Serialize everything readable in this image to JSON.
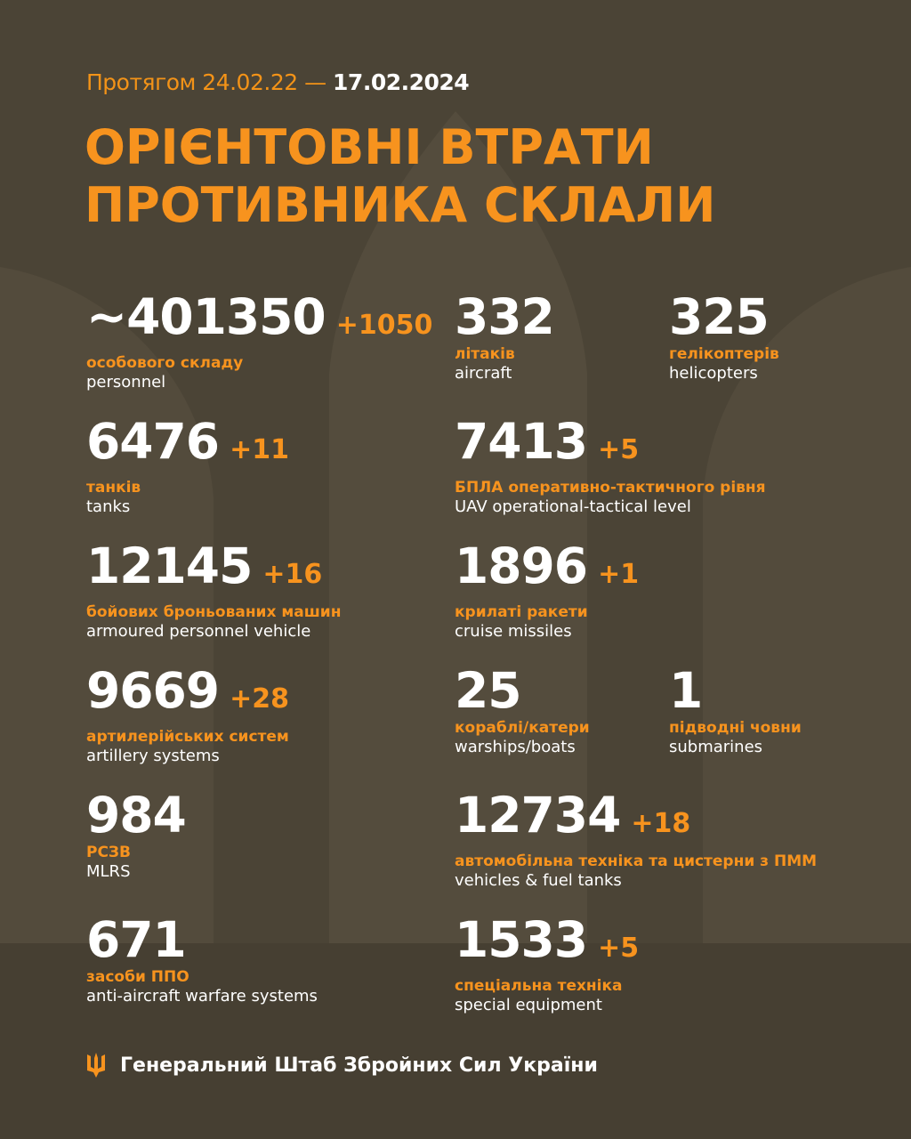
{
  "header": {
    "date_prefix": "Протягом 24.02.22 —",
    "date_end": "17.02.2024",
    "title_line1": "ОРІЄНТОВНІ ВТРАТИ",
    "title_line2": "ПРОТИВНИКА СКЛАЛИ"
  },
  "colors": {
    "background": "#4b4436",
    "accent": "#f7931e",
    "text": "#ffffff"
  },
  "items": [
    {
      "value": "~401350",
      "delta": "+1050",
      "ua": "особового складу",
      "en": "personnel"
    },
    {
      "value": "332",
      "delta": "",
      "ua": "літаків",
      "en": "aircraft"
    },
    {
      "value": "325",
      "delta": "",
      "ua": "гелікоптерів",
      "en": "helicopters"
    },
    {
      "value": "6476",
      "delta": "+11",
      "ua": "танків",
      "en": "tanks"
    },
    {
      "value": "7413",
      "delta": "+5",
      "ua": "БПЛА оперативно-тактичного рівня",
      "en": "UAV operational-tactical level"
    },
    {
      "value": "12145",
      "delta": "+16",
      "ua": "бойових броньованих машин",
      "en": "armoured personnel vehicle"
    },
    {
      "value": "1896",
      "delta": "+1",
      "ua": "крилаті ракети",
      "en": "cruise missiles"
    },
    {
      "value": "9669",
      "delta": "+28",
      "ua": "артилерійських систем",
      "en": "artillery systems"
    },
    {
      "value": "25",
      "delta": "",
      "ua": "кораблі/катери",
      "en": "warships/boats"
    },
    {
      "value": "1",
      "delta": "",
      "ua": "підводні човни",
      "en": "submarines"
    },
    {
      "value": "984",
      "delta": "",
      "ua": "РСЗВ",
      "en": "MLRS"
    },
    {
      "value": "12734",
      "delta": "+18",
      "ua": "автомобільна техніка та цистерни з ПММ",
      "en": "vehicles & fuel tanks"
    },
    {
      "value": "671",
      "delta": "",
      "ua": "засоби ППО",
      "en": "anti-aircraft warfare systems"
    },
    {
      "value": "1533",
      "delta": "+5",
      "ua": "спеціальна техніка",
      "en": "special equipment"
    }
  ],
  "footer": {
    "icon": "trident-icon",
    "text": "Генеральний Штаб Збройних Сил України"
  }
}
